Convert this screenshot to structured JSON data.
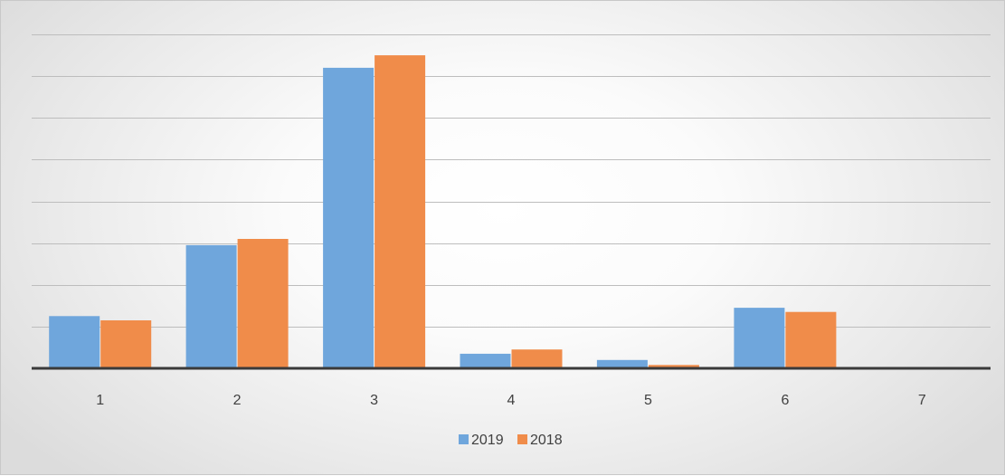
{
  "chart_data": {
    "type": "bar",
    "title": "",
    "xlabel": "",
    "ylabel": "",
    "categories": [
      "1",
      "2",
      "3",
      "4",
      "5",
      "6",
      "7"
    ],
    "series": [
      {
        "name": "2019",
        "values": [
          1.25,
          2.95,
          7.2,
          0.35,
          0.2,
          1.45,
          0
        ]
      },
      {
        "name": "2018",
        "values": [
          1.15,
          3.1,
          7.5,
          0.45,
          0.08,
          1.35,
          0
        ]
      }
    ],
    "ylim": [
      0,
      8
    ],
    "yticks": [
      0,
      1,
      2,
      3,
      4,
      5,
      6,
      7,
      8
    ],
    "y_tick_labels_visible": false,
    "grid": true,
    "legend": "bottom",
    "colors": {
      "2019": "#6fa6dc",
      "2018": "#f08c4a",
      "gridline": "#bdbdbd",
      "axis": "#3a3a3a"
    }
  }
}
